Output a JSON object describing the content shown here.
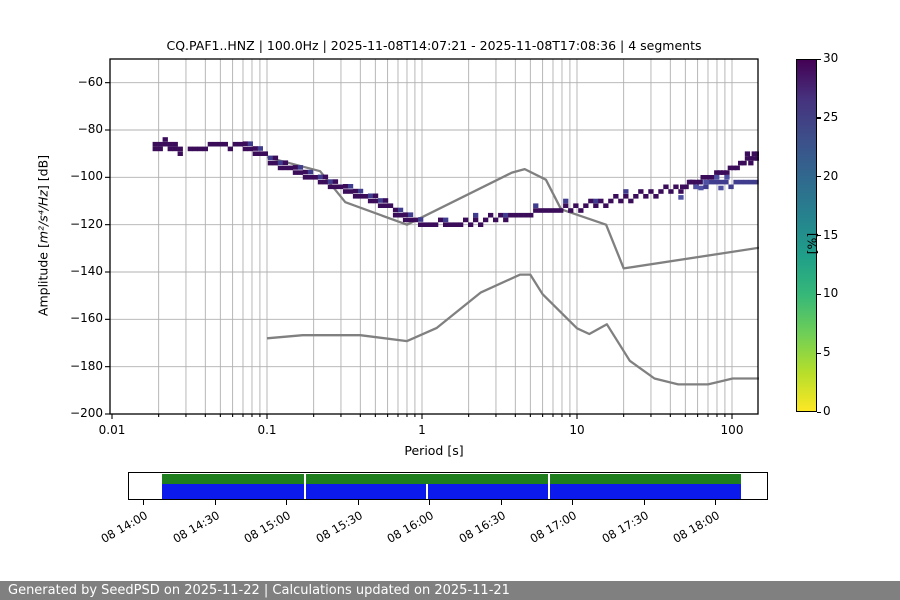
{
  "header": {
    "title": "CQ.PAF1..HNZ | 100.0Hz | 2025-11-08T14:07:21 - 2025-11-08T17:08:36 | 4 segments"
  },
  "footer": {
    "text": "Generated by SeedPSD on 2025-11-22 | Calculations updated on 2025-11-21",
    "bg": "#808080",
    "fg": "#ffffff"
  },
  "chart_data": {
    "type": "heatmap",
    "title": "CQ.PAF1..HNZ | 100.0Hz | 2025-11-08T14:07:21 - 2025-11-08T17:08:36 | 4 segments",
    "xlabel": "Period [s]",
    "ylabel": "Amplitude [m²/s⁴/Hz] [dB]",
    "ylabel_parts": {
      "prefix": "Amplitude [",
      "math": "m²/s⁴/Hz",
      "suffix": "] [dB]"
    },
    "xscale": "log",
    "xlim": [
      0.01,
      147
    ],
    "ylim": [
      -200,
      -50
    ],
    "grid": true,
    "xticks": [
      0.01,
      0.1,
      1,
      10,
      100
    ],
    "xtick_labels": [
      "0.01",
      "0.1",
      "1",
      "10",
      "100"
    ],
    "yticks": [
      -60,
      -80,
      -100,
      -120,
      -140,
      -160,
      -180,
      -200
    ],
    "colorbar": {
      "label": "[%]",
      "min": 0,
      "max": 30,
      "ticks": [
        0,
        5,
        10,
        15,
        20,
        25,
        30
      ],
      "gradient_top_to_bottom": [
        "#440154",
        "#46327e",
        "#3d4e8a",
        "#31688e",
        "#26828e",
        "#1f9e89",
        "#35b779",
        "#6ece58",
        "#b5de2b",
        "#fde725"
      ]
    },
    "noise_models": {
      "color": "#808080",
      "nhnm": [
        [
          0.1,
          -91.5
        ],
        [
          0.22,
          -97.4
        ],
        [
          0.32,
          -110.5
        ],
        [
          0.8,
          -120.0
        ],
        [
          3.8,
          -98.0
        ],
        [
          4.6,
          -96.5
        ],
        [
          6.3,
          -101.0
        ],
        [
          7.9,
          -113.5
        ],
        [
          15.4,
          -120.0
        ],
        [
          20.0,
          -138.5
        ],
        [
          354.8,
          -126.0
        ]
      ],
      "nlnm": [
        [
          0.1,
          -168.0
        ],
        [
          0.17,
          -166.7
        ],
        [
          0.4,
          -166.7
        ],
        [
          0.8,
          -169.2
        ],
        [
          1.24,
          -163.7
        ],
        [
          2.4,
          -148.6
        ],
        [
          4.3,
          -141.1
        ],
        [
          5.0,
          -141.1
        ],
        [
          6.0,
          -149.4
        ],
        [
          10.0,
          -163.8
        ],
        [
          12.0,
          -166.2
        ],
        [
          15.6,
          -162.1
        ],
        [
          21.9,
          -177.5
        ],
        [
          31.6,
          -185.0
        ],
        [
          45.0,
          -187.5
        ],
        [
          70.0,
          -187.5
        ],
        [
          101.0,
          -185.0
        ],
        [
          154.0,
          -185.0
        ]
      ]
    },
    "psd_histogram": {
      "cell_colors": {
        "dark": "#3a0c59",
        "mid": "#413d8e",
        "light": "#4f51a3"
      },
      "ridge_db_by_period": [
        [
          0.019,
          -88
        ],
        [
          0.024,
          -88
        ],
        [
          0.028,
          -88.3
        ],
        [
          0.0295,
          -92.5
        ],
        [
          0.032,
          -89.3
        ],
        [
          0.036,
          -87.8
        ],
        [
          0.042,
          -86.8
        ],
        [
          0.05,
          -86.2
        ],
        [
          0.06,
          -86.2
        ],
        [
          0.07,
          -87
        ],
        [
          0.08,
          -88.3
        ],
        [
          0.09,
          -90
        ],
        [
          0.105,
          -92.8
        ],
        [
          0.13,
          -95.8
        ],
        [
          0.16,
          -98.3
        ],
        [
          0.2,
          -100.8
        ],
        [
          0.25,
          -103.2
        ],
        [
          0.32,
          -106
        ],
        [
          0.4,
          -108.4
        ],
        [
          0.5,
          -110.8
        ],
        [
          0.63,
          -113.6
        ],
        [
          0.78,
          -116.8
        ],
        [
          0.92,
          -118.8
        ],
        [
          1.1,
          -119.8
        ],
        [
          1.4,
          -119.8
        ],
        [
          1.9,
          -119.2
        ],
        [
          2.6,
          -118.2
        ],
        [
          3.6,
          -116.9
        ],
        [
          5.0,
          -115.3
        ],
        [
          7.0,
          -113.9
        ],
        [
          10,
          -112.5
        ],
        [
          14,
          -111
        ],
        [
          19,
          -109.5
        ],
        [
          26,
          -107.7
        ],
        [
          35,
          -105.8
        ],
        [
          46,
          -104.2
        ],
        [
          58,
          -103.2
        ],
        [
          72,
          -102.6
        ],
        [
          90,
          -102.2
        ],
        [
          115,
          -102
        ],
        [
          147,
          -101.8
        ]
      ],
      "upper_branch_db_by_period": [
        [
          48,
          -103.6
        ],
        [
          58,
          -101.8
        ],
        [
          70,
          -100
        ],
        [
          84,
          -98.2
        ],
        [
          100,
          -96.2
        ],
        [
          118,
          -94.2
        ],
        [
          132,
          -92.6
        ],
        [
          147,
          -91.2
        ]
      ],
      "double_row_period_range": [
        0.065,
        1.05
      ],
      "notch_gap_period_range": [
        0.0283,
        0.03
      ]
    }
  },
  "timeline": {
    "tick_labels": [
      "08 14:00",
      "08 14:30",
      "08 15:00",
      "08 15:30",
      "08 16:00",
      "08 16:30",
      "08 17:00",
      "08 17:30",
      "08 18:00"
    ],
    "green_color": "#1e7e1e",
    "blue_color": "#0c1bec",
    "coverage": {
      "start_frac": 0.0531,
      "end_frac": 0.9578,
      "green_gap_fracs": [
        0.2766,
        0.6578
      ],
      "blue_gap_fracs": [
        0.2766,
        0.4672,
        0.6578
      ]
    },
    "tick_first_frac": 0.02344,
    "tick_step_frac": 0.11172
  },
  "style": {
    "grid_color": "#b0b0b0",
    "axis_color": "#000000",
    "plot_bg": "#ffffff"
  }
}
